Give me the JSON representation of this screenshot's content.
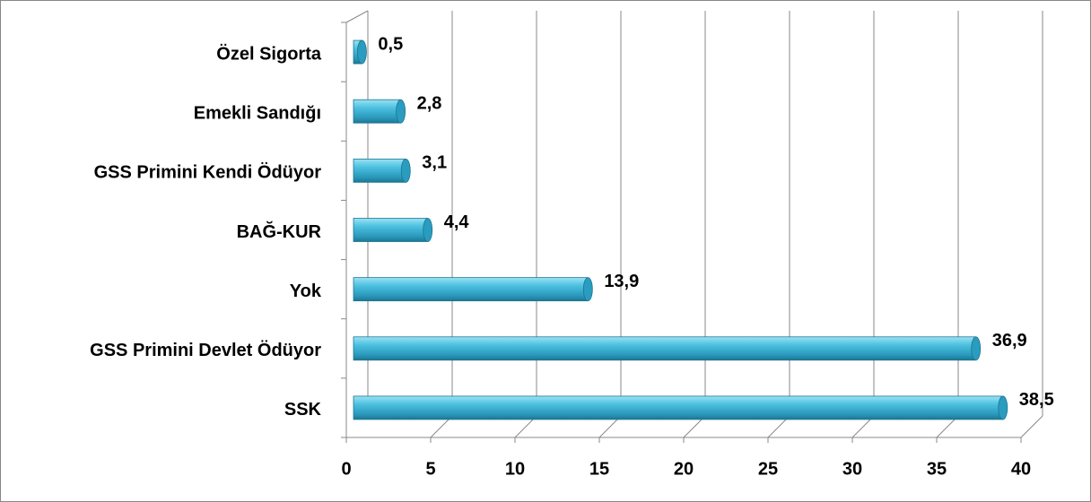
{
  "chart_data": {
    "type": "bar",
    "orientation": "horizontal",
    "categories": [
      "Özel Sigorta",
      "Emekli Sandığı",
      "GSS Primini Kendi Ödüyor",
      "BAĞ-KUR",
      "Yok",
      "GSS Primini Devlet Ödüyor",
      "SSK"
    ],
    "values": [
      0.5,
      2.8,
      3.1,
      4.4,
      13.9,
      36.9,
      38.5
    ],
    "value_labels": [
      "0,5",
      "2,8",
      "3,1",
      "4,4",
      "13,9",
      "36,9",
      "38,5"
    ],
    "color": "#3fb2d4",
    "xlim": [
      0,
      40
    ],
    "xticks": [
      0,
      5,
      10,
      15,
      20,
      25,
      30,
      35,
      40
    ],
    "grid": true
  }
}
